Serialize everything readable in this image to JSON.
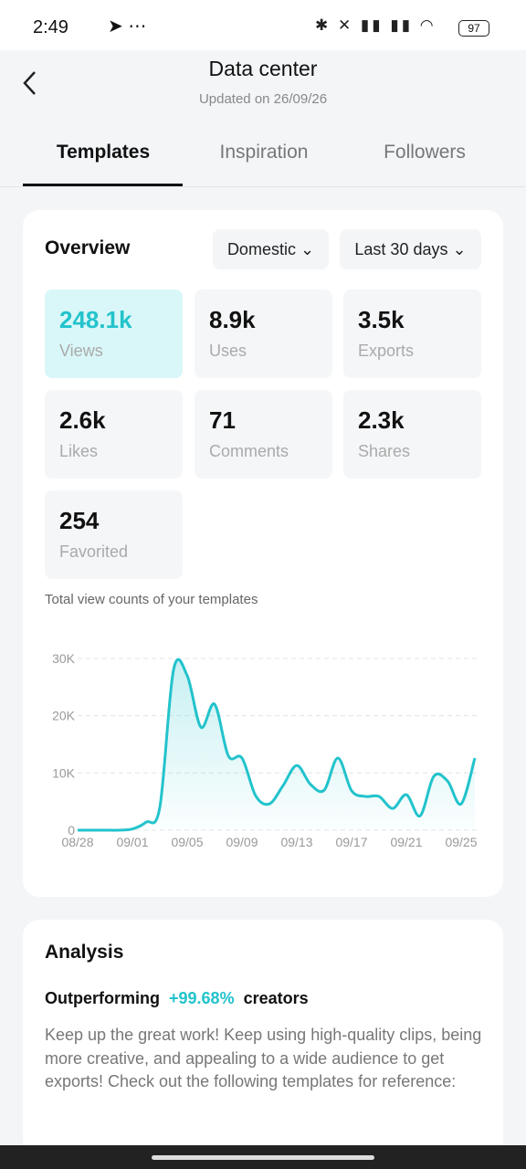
{
  "status_bar": {
    "time": "2:49",
    "battery": "97"
  },
  "header": {
    "title": "Data center",
    "subtitle": "Updated on 26/09/26"
  },
  "tabs": {
    "items": [
      "Templates",
      "Inspiration",
      "Followers"
    ],
    "active": 0
  },
  "overview": {
    "title": "Overview",
    "filters": [
      "Domestic",
      "Last 30 days"
    ],
    "stats": [
      {
        "value": "248.1k",
        "label": "Views"
      },
      {
        "value": "8.9k",
        "label": "Uses"
      },
      {
        "value": "3.5k",
        "label": "Exports"
      },
      {
        "value": "2.6k",
        "label": "Likes"
      },
      {
        "value": "71",
        "label": "Comments"
      },
      {
        "value": "2.3k",
        "label": "Shares"
      },
      {
        "value": "254",
        "label": "Favorited"
      }
    ]
  },
  "chart_data": {
    "type": "line",
    "title": "Total view counts of your templates",
    "categories": [
      "08/28",
      null,
      null,
      null,
      "09/01",
      null,
      null,
      null,
      "09/05",
      null,
      null,
      null,
      "09/09",
      null,
      null,
      null,
      "09/13",
      null,
      null,
      null,
      "09/17",
      null,
      null,
      null,
      "09/21",
      null,
      null,
      null,
      "09/25",
      null
    ],
    "series": [
      {
        "color": "#22c3cc",
        "values": [
          0,
          0,
          0,
          0,
          200,
          1400,
          4000,
          28000,
          27000,
          18000,
          22000,
          13000,
          12600,
          6000,
          4600,
          7800,
          11300,
          8000,
          7000,
          12600,
          6900,
          5900,
          5900,
          3800,
          6200,
          2500,
          9400,
          8600,
          4600,
          12600
        ]
      }
    ],
    "ylim": [
      0,
      30000
    ],
    "yticks": [
      0,
      {
        "value": 10000,
        "label": "10K"
      },
      {
        "value": 20000,
        "label": "20K"
      },
      {
        "value": 30000,
        "label": "30K"
      }
    ],
    "grid": true
  },
  "analysis": {
    "title": "Analysis",
    "lead": "Outperforming",
    "percent": "+99.68%",
    "tail": "creators",
    "body": "Keep up the great work! Keep using high-quality clips, being more creative, and appealing to a wide audience to get exports! Check out the following templates for reference:"
  }
}
